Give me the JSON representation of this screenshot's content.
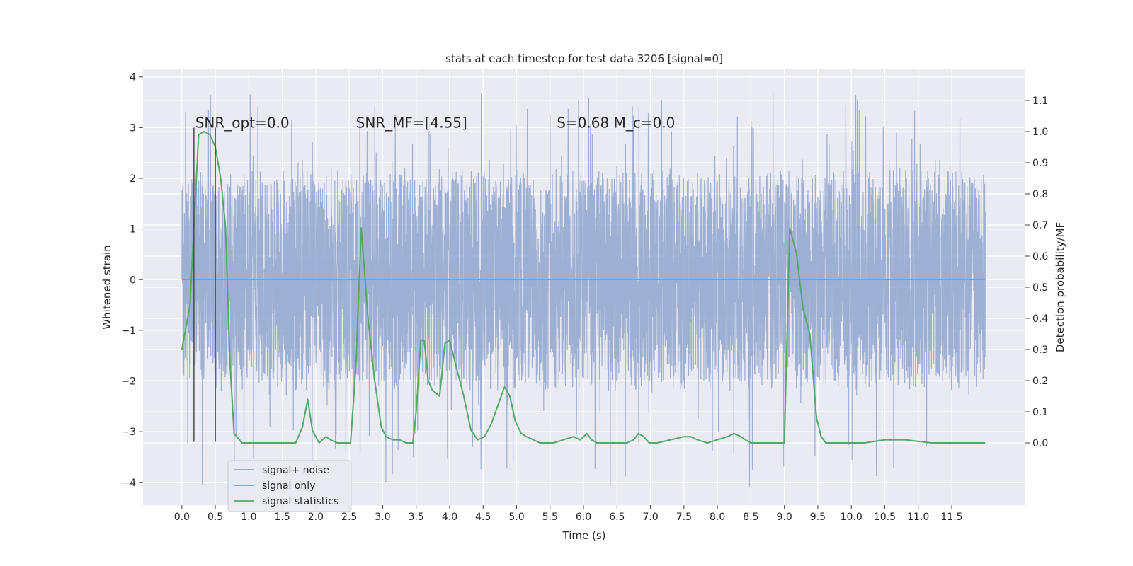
{
  "chart_data": {
    "type": "line",
    "title": "stats at each timestep for test data 3206 [signal=0]",
    "xlabel": "Time (s)",
    "ylabel_left": "Whitened strain",
    "ylabel_right": "Detection probability/MF",
    "xlim": [
      -0.58,
      12.6
    ],
    "ylim_left": [
      -4.45,
      4.15
    ],
    "ylim_right": [
      -0.2,
      1.2
    ],
    "x_ticks": [
      "0.0",
      "0.5",
      "1.0",
      "1.5",
      "2.0",
      "2.5",
      "3.0",
      "3.5",
      "4.0",
      "4.5",
      "5.0",
      "5.5",
      "6.0",
      "6.5",
      "7.0",
      "7.5",
      "8.0",
      "8.5",
      "9.0",
      "9.5",
      "10.0",
      "10.5",
      "11.0",
      "11.5"
    ],
    "y_ticks_left": [
      "−4",
      "−3",
      "−2",
      "−1",
      "0",
      "1",
      "2",
      "3",
      "4"
    ],
    "y_ticks_right": [
      "0.0",
      "0.1",
      "0.2",
      "0.3",
      "0.4",
      "0.5",
      "0.6",
      "0.7",
      "0.8",
      "0.9",
      "1.0",
      "1.1"
    ],
    "grid": true,
    "legend_placement": "lower-left",
    "annotations": [
      {
        "text": "SNR_opt=0.0",
        "x": 0.2,
        "y": 3.0
      },
      {
        "text": "SNR_MF=[4.55]",
        "x": 2.6,
        "y": 3.0
      },
      {
        "text": "S=0.68   M_c=0.0",
        "x": 5.6,
        "y": 3.0
      }
    ],
    "vertical_lines": [
      {
        "x": 0.18,
        "y_range": [
          -3.2,
          3.0
        ]
      },
      {
        "x": 0.5,
        "y_range": [
          -3.2,
          3.0
        ]
      }
    ],
    "series": [
      {
        "name": "signal+ noise",
        "axis": "left",
        "color": "#8fa4cc",
        "x_range": [
          0.0,
          12.0
        ],
        "envelope": {
          "typical_min": -2.0,
          "typical_max": 2.2,
          "peak_min": -4.1,
          "peak_max": 3.7
        }
      },
      {
        "name": "signal only",
        "axis": "left",
        "color": "#dd8452",
        "x": [
          0.0,
          12.0
        ],
        "y": [
          0.0,
          0.0
        ]
      },
      {
        "name": "signal statistics",
        "axis": "right",
        "color": "#55a868",
        "x": [
          0.0,
          0.12,
          0.25,
          0.33,
          0.42,
          0.5,
          0.58,
          0.65,
          0.72,
          0.78,
          0.9,
          1.1,
          1.3,
          1.5,
          1.7,
          1.8,
          1.88,
          1.95,
          2.05,
          2.15,
          2.22,
          2.32,
          2.42,
          2.52,
          2.6,
          2.68,
          2.78,
          2.88,
          2.98,
          3.05,
          3.15,
          3.25,
          3.35,
          3.45,
          3.5,
          3.57,
          3.62,
          3.68,
          3.74,
          3.85,
          3.93,
          4.0,
          4.08,
          4.2,
          4.32,
          4.42,
          4.52,
          4.62,
          4.72,
          4.82,
          4.9,
          4.98,
          5.07,
          5.15,
          5.25,
          5.35,
          5.45,
          5.55,
          5.7,
          5.85,
          5.95,
          6.05,
          6.12,
          6.2,
          6.35,
          6.5,
          6.65,
          6.75,
          6.82,
          6.9,
          6.98,
          7.1,
          7.3,
          7.5,
          7.6,
          7.7,
          7.85,
          8.0,
          8.15,
          8.25,
          8.35,
          8.42,
          8.5,
          8.7,
          8.9,
          9.0,
          9.08,
          9.18,
          9.28,
          9.38,
          9.48,
          9.55,
          9.62,
          9.72,
          9.9,
          10.2,
          10.5,
          10.8,
          11.2,
          11.5,
          11.9,
          12.0
        ],
        "y": [
          0.3,
          0.44,
          0.99,
          1.0,
          0.99,
          0.95,
          0.85,
          0.7,
          0.25,
          0.03,
          0.0,
          0.0,
          0.0,
          0.0,
          0.0,
          0.05,
          0.14,
          0.04,
          0.0,
          0.02,
          0.01,
          0.0,
          0.0,
          0.0,
          0.25,
          0.69,
          0.4,
          0.2,
          0.05,
          0.02,
          0.01,
          0.01,
          0.0,
          0.0,
          0.1,
          0.33,
          0.33,
          0.2,
          0.17,
          0.15,
          0.32,
          0.33,
          0.26,
          0.16,
          0.04,
          0.01,
          0.02,
          0.06,
          0.12,
          0.18,
          0.15,
          0.07,
          0.03,
          0.02,
          0.01,
          0.0,
          0.0,
          0.0,
          0.01,
          0.02,
          0.01,
          0.03,
          0.01,
          0.0,
          0.0,
          0.0,
          0.0,
          0.01,
          0.03,
          0.02,
          0.0,
          0.0,
          0.01,
          0.02,
          0.02,
          0.01,
          0.0,
          0.01,
          0.02,
          0.03,
          0.02,
          0.01,
          0.0,
          0.0,
          0.0,
          0.0,
          0.69,
          0.61,
          0.43,
          0.35,
          0.08,
          0.02,
          0.0,
          0.0,
          0.0,
          0.0,
          0.01,
          0.01,
          0.0,
          0.0,
          0.0,
          0.0
        ]
      }
    ]
  },
  "legend": {
    "items": [
      {
        "label": "signal+ noise",
        "color": "#8fa4cc"
      },
      {
        "label": "signal only",
        "color": "#dd8452"
      },
      {
        "label": "signal statistics",
        "color": "#55a868"
      }
    ]
  },
  "colors": {
    "plot_background": "#eaeaf2",
    "grid": "#ffffff",
    "vertical_lines": "#4a4a4a"
  }
}
